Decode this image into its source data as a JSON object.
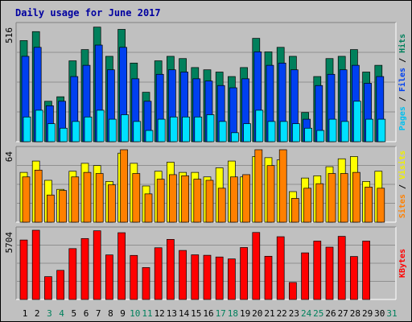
{
  "chart_data": {
    "type": "bar",
    "title": "Daily usage for June 2017",
    "categories": [
      "1",
      "2",
      "3",
      "4",
      "5",
      "6",
      "7",
      "8",
      "9",
      "10",
      "11",
      "12",
      "13",
      "14",
      "15",
      "16",
      "17",
      "18",
      "19",
      "20",
      "21",
      "22",
      "23",
      "24",
      "25",
      "26",
      "27",
      "28",
      "29",
      "30",
      "31"
    ],
    "weekend_days": [
      "3",
      "4",
      "10",
      "11",
      "17",
      "18",
      "24",
      "25",
      "31"
    ],
    "panels": [
      {
        "id": "hits_files_pages",
        "ymax_label": "516",
        "ymax": 516,
        "ylabel_parts": [
          {
            "text": "Pages",
            "color": "#00C0F0"
          },
          {
            "text": " / ",
            "color": "#000000"
          },
          {
            "text": "Files",
            "color": "#0040F0"
          },
          {
            "text": " / ",
            "color": "#000000"
          },
          {
            "text": "Hits",
            "color": "#00805C"
          }
        ],
        "series": [
          {
            "name": "Hits",
            "color": "#00805C",
            "values": [
              450,
              490,
              180,
              200,
              360,
              410,
              510,
              380,
              500,
              350,
              220,
              360,
              380,
              370,
              330,
              320,
              310,
              290,
              330,
              460,
              400,
              420,
              380,
              130,
              290,
              370,
              380,
              410,
              310,
              340,
              0
            ]
          },
          {
            "name": "Files",
            "color": "#0040F0",
            "values": [
              380,
              420,
              160,
              180,
              290,
              340,
              430,
              320,
              420,
              280,
              180,
              300,
              320,
              310,
              280,
              270,
              250,
              240,
              280,
              400,
              340,
              350,
              320,
              100,
              250,
              300,
              320,
              340,
              260,
              290,
              0
            ]
          },
          {
            "name": "Pages",
            "color": "#00E0FF",
            "values": [
              110,
              140,
              80,
              60,
              90,
              110,
              140,
              100,
              120,
              90,
              50,
              100,
              110,
              110,
              110,
              120,
              90,
              40,
              80,
              140,
              90,
              90,
              80,
              60,
              50,
              100,
              90,
              180,
              100,
              100,
              0
            ]
          }
        ]
      },
      {
        "id": "visits_sites",
        "ymax_label": "64",
        "ymax": 64,
        "ylabel_parts": [
          {
            "text": "Sites",
            "color": "#FF8000"
          },
          {
            "text": " / ",
            "color": "#000000"
          },
          {
            "text": "Visits",
            "color": "#F0F000"
          }
        ],
        "series": [
          {
            "name": "Visits",
            "color": "#FFFF00",
            "values": [
              44,
              54,
              37,
              29,
              45,
              52,
              50,
              36,
              61,
              52,
              32,
              45,
              53,
              44,
              44,
              40,
              48,
              54,
              40,
              58,
              57,
              55,
              27,
              39,
              41,
              49,
              56,
              58,
              36,
              45,
              0
            ]
          },
          {
            "name": "Sites",
            "color": "#FF8000",
            "values": [
              40,
              46,
              24,
              28,
              40,
              44,
              43,
              33,
              64,
              43,
              25,
              38,
              42,
              41,
              38,
              37,
              30,
              40,
              42,
              64,
              50,
              64,
              21,
              30,
              34,
              43,
              43,
              44,
              31,
              30,
              0
            ]
          }
        ]
      },
      {
        "id": "kbytes",
        "ymax_label": "5704",
        "ymax": 5704,
        "ylabel_parts": [
          {
            "text": "KBytes",
            "color": "#FF0000"
          }
        ],
        "series": [
          {
            "name": "KBytes",
            "color": "#FF0000",
            "values": [
              4900,
              5704,
              1880,
              2400,
              4190,
              5020,
              5660,
              3670,
              5500,
              3630,
              2630,
              4260,
              4950,
              4040,
              3680,
              3640,
              3500,
              3340,
              4280,
              5520,
              3560,
              5170,
              1400,
              3840,
              4810,
              4310,
              5200,
              3540,
              4810,
              0,
              0
            ]
          }
        ]
      }
    ]
  }
}
